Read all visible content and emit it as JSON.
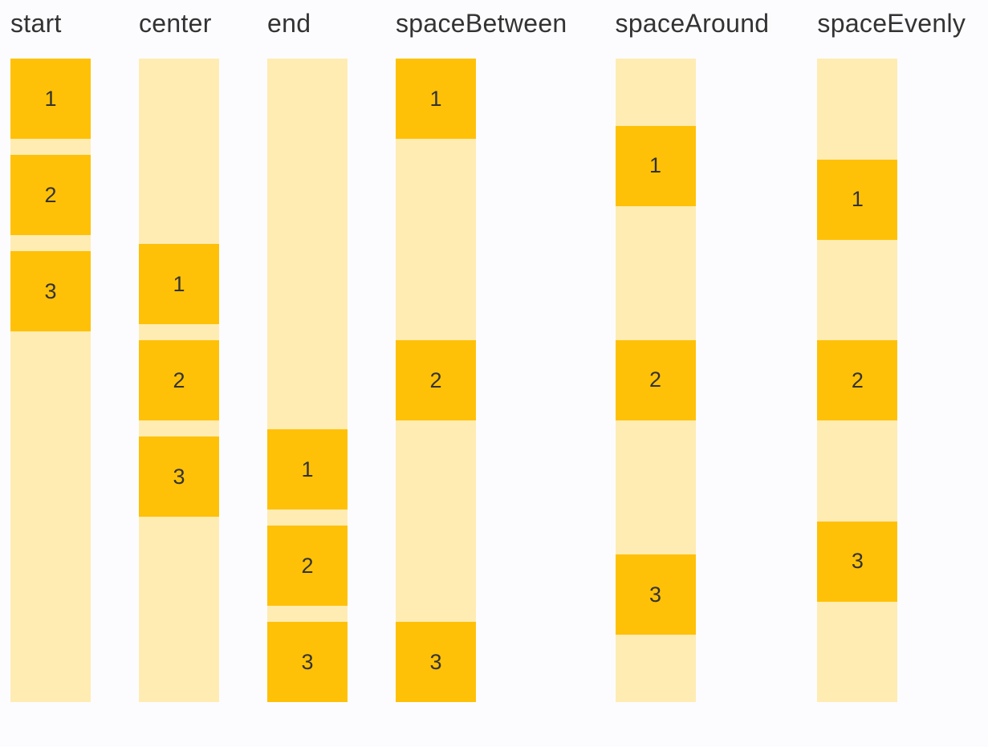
{
  "page": {
    "background": "#FCFCFF"
  },
  "demo": {
    "item_color": "#FFC107",
    "track_color": "#FFECB3",
    "text_color": "#333333",
    "columns": [
      {
        "label": "start",
        "justify": "flex-start",
        "item_gap": 20,
        "items": [
          "1",
          "2",
          "3"
        ]
      },
      {
        "label": "center",
        "justify": "center",
        "item_gap": 20,
        "items": [
          "1",
          "2",
          "3"
        ]
      },
      {
        "label": "end",
        "justify": "flex-end",
        "item_gap": 20,
        "items": [
          "1",
          "2",
          "3"
        ]
      },
      {
        "label": "spaceBetween",
        "justify": "space-between",
        "item_gap": 0,
        "items": [
          "1",
          "2",
          "3"
        ]
      },
      {
        "label": "spaceAround",
        "justify": "space-around",
        "item_gap": 0,
        "items": [
          "1",
          "2",
          "3"
        ]
      },
      {
        "label": "spaceEvenly",
        "justify": "space-evenly",
        "item_gap": 0,
        "items": [
          "1",
          "2",
          "3"
        ]
      }
    ]
  }
}
